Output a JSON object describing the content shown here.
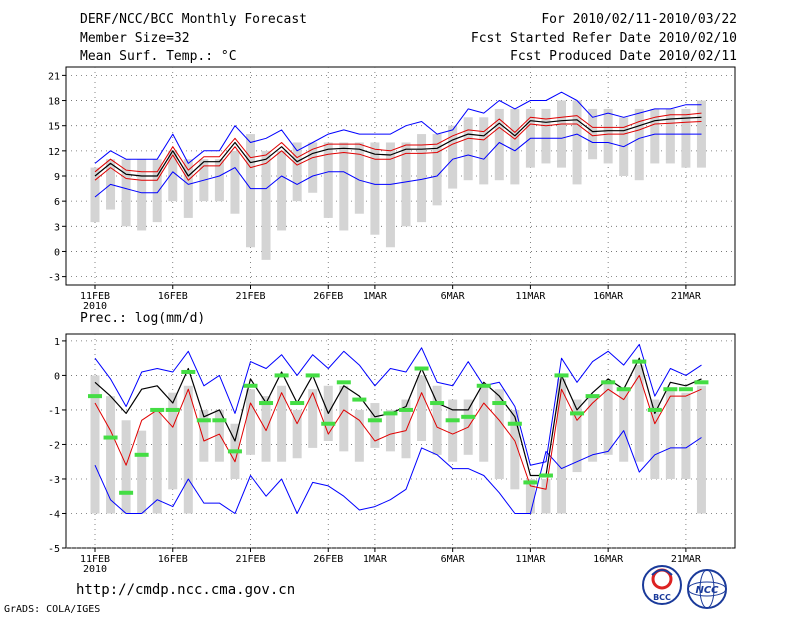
{
  "header": {
    "title": "DERF/NCC/BCC Monthly Forecast",
    "member_size": "Member Size=32",
    "variable": "Mean Surf. Temp.: °C",
    "period": "For 2010/02/11-2010/03/22",
    "started": "Fcst Started Refer Date 2010/02/10",
    "produced": "Fcst Produced Date 2010/02/11"
  },
  "footer": {
    "url": "http://cmdp.ncc.cma.gov.cn",
    "grads": "GrADS: COLA/IGES",
    "logo1_text": "BCC",
    "logo2_text": "NCC"
  },
  "colors": {
    "range": "#d4d4d4",
    "ens": "#0000ff",
    "spread": "#e00000",
    "mean": "#000000",
    "prec_marker": "#44dd44"
  },
  "x_ticks": [
    "11FEB",
    "16FEB",
    "21FEB",
    "26FEB",
    "1MAR",
    "6MAR",
    "11MAR",
    "16MAR",
    "21MAR"
  ],
  "x_tick_days": [
    0,
    5,
    10,
    15,
    18,
    23,
    28,
    33,
    38
  ],
  "year_label": "2010",
  "chart_data": [
    {
      "type": "line",
      "title": "Mean Surf. Temp.: °C",
      "ylabel": "°C",
      "ylim": [
        -4,
        22
      ],
      "yticks": [
        -3,
        0,
        3,
        6,
        9,
        12,
        15,
        18,
        21
      ],
      "x_start": "2010-02-11",
      "n_days": 40,
      "series": [
        {
          "name": "range_max",
          "values": [
            10,
            11,
            11,
            11,
            11,
            12,
            11,
            11,
            11,
            12,
            14,
            12,
            12,
            13,
            13,
            13,
            13,
            13,
            13,
            13,
            13,
            14,
            14,
            15,
            16,
            16,
            17,
            17,
            17,
            17,
            18,
            18,
            17,
            17,
            16,
            17,
            17,
            17,
            17,
            18
          ]
        },
        {
          "name": "range_min",
          "values": [
            3.5,
            5,
            3,
            2.5,
            3.5,
            6,
            4,
            6,
            6,
            4.5,
            0.5,
            -1,
            2.5,
            6,
            7,
            4,
            2.5,
            4.5,
            2,
            0.5,
            3,
            3.5,
            5.5,
            7.5,
            8.5,
            8,
            8.5,
            8,
            10,
            10.5,
            10,
            8,
            11,
            10.5,
            9,
            8.5,
            10.5,
            10.5,
            10,
            10
          ]
        },
        {
          "name": "ens_max",
          "values": [
            10.5,
            12,
            11,
            11,
            11,
            14,
            10.5,
            12,
            12,
            15,
            13,
            13.5,
            14.5,
            12,
            13,
            14,
            14.5,
            14,
            14,
            14,
            15,
            15.5,
            14,
            14.5,
            17,
            16.5,
            18,
            17,
            18,
            18,
            19,
            18,
            16,
            16.5,
            16,
            16.5,
            17,
            17,
            17.5,
            17.5
          ]
        },
        {
          "name": "spread_upper",
          "values": [
            9.5,
            11,
            9.7,
            9.5,
            9.5,
            12.5,
            9.7,
            11.3,
            11.3,
            13.5,
            11.2,
            11.5,
            13,
            11.2,
            12.2,
            12.8,
            12.8,
            12.8,
            12.2,
            12,
            12.7,
            12.7,
            12.8,
            13.8,
            14.5,
            14.3,
            15.8,
            14.2,
            16,
            15.8,
            16,
            16.2,
            14.8,
            14.8,
            14.8,
            15.5,
            16,
            16.3,
            16.3,
            16.5
          ]
        },
        {
          "name": "mean",
          "values": [
            9,
            10.5,
            9.2,
            9,
            9,
            12,
            9,
            10.7,
            10.7,
            13,
            10.6,
            11,
            12.5,
            10.7,
            11.7,
            12.2,
            12.3,
            12.2,
            11.6,
            11.5,
            12.2,
            12.2,
            12.3,
            13.3,
            14,
            13.8,
            15.3,
            13.8,
            15.6,
            15.4,
            15.6,
            15.7,
            14.3,
            14.4,
            14.4,
            15,
            15.6,
            15.8,
            15.9,
            16
          ]
        },
        {
          "name": "spread_lower",
          "values": [
            8.5,
            10,
            8.7,
            8.5,
            8.5,
            11.5,
            8.5,
            10.2,
            10.2,
            12.5,
            10,
            10.5,
            12,
            10.3,
            11.2,
            11.6,
            11.8,
            11.6,
            11,
            11,
            11.7,
            11.7,
            11.8,
            12.8,
            13.5,
            13.3,
            14.8,
            13.4,
            15.2,
            15,
            15.2,
            15.2,
            13.8,
            14,
            14,
            14.5,
            15.2,
            15.3,
            15.4,
            15.5
          ]
        },
        {
          "name": "ens_min",
          "values": [
            6.5,
            8,
            7.5,
            7,
            7,
            9.5,
            8,
            8.5,
            9,
            10,
            7.5,
            7.5,
            9,
            8,
            9,
            9.5,
            9.5,
            8.5,
            8,
            8,
            8.3,
            8.6,
            9,
            11,
            11.5,
            11,
            13,
            12,
            13.5,
            13.5,
            13.5,
            14,
            13,
            13,
            12.5,
            13.5,
            14,
            14,
            14,
            14
          ]
        }
      ]
    },
    {
      "type": "line",
      "title": "Prec.: log(mm/d)",
      "ylabel": "log(mm/d)",
      "ylim": [
        -5,
        1.2
      ],
      "yticks": [
        -5,
        -4,
        -3,
        -2,
        -1,
        0,
        1
      ],
      "x_start": "2010-02-11",
      "n_days": 40,
      "series": [
        {
          "name": "range_max",
          "values": [
            0,
            -0.6,
            -1.3,
            -1.6,
            -1,
            -0.5,
            -0.3,
            -1,
            -1,
            -1.4,
            -0.4,
            -0.6,
            -0.3,
            -1,
            -0.4,
            -0.3,
            -0.3,
            -1,
            -0.8,
            -1,
            -0.7,
            0,
            -0.3,
            -0.7,
            -0.7,
            -0.3,
            -0.4,
            -1,
            -3,
            -3,
            -0.1,
            -0.7,
            -0.6,
            -0.2,
            -0.4,
            0.3,
            -0.7,
            -0.4,
            -0.5,
            -0.3
          ]
        },
        {
          "name": "range_min",
          "values": [
            -4,
            -4,
            -4,
            -4,
            -4,
            -3.3,
            -4,
            -2.5,
            -2.5,
            -3,
            -2.3,
            -2.5,
            -2.5,
            -2.4,
            -2.1,
            -1.9,
            -2.2,
            -2.5,
            -2.1,
            -2.2,
            -2.4,
            -1.9,
            -2.3,
            -2.5,
            -2.3,
            -2.5,
            -3,
            -3.3,
            -4,
            -4,
            -4,
            -2.8,
            -2.5,
            -2.3,
            -2.5,
            -2.5,
            -3,
            -3,
            -3,
            -4
          ]
        },
        {
          "name": "ens_max",
          "values": [
            0.5,
            -0.1,
            -0.9,
            0.1,
            0.2,
            0.1,
            0.7,
            -0.3,
            0,
            -1.1,
            0.4,
            0.2,
            0.6,
            0,
            0.6,
            0.2,
            0.7,
            0.3,
            -0.3,
            0.2,
            0.1,
            0.8,
            -0.2,
            -0.3,
            0.4,
            -0.3,
            -0.2,
            -0.9,
            -2.6,
            -2.5,
            0.5,
            -0.2,
            0.4,
            0.7,
            0.3,
            0.9,
            -0.6,
            0.2,
            0,
            0.3
          ]
        },
        {
          "name": "mean",
          "values": [
            -0.2,
            -0.6,
            -1.1,
            -0.4,
            -0.3,
            -0.8,
            0.2,
            -1.2,
            -1,
            -1.9,
            -0.1,
            -0.8,
            0.1,
            -0.8,
            0,
            -1.1,
            -0.3,
            -0.6,
            -1.2,
            -1.1,
            -0.9,
            0.2,
            -0.8,
            -1,
            -1,
            -0.2,
            -0.6,
            -1.2,
            -2.9,
            -2.9,
            0,
            -1,
            -0.5,
            -0.1,
            -0.4,
            0.5,
            -1.1,
            -0.2,
            -0.3,
            -0.1
          ]
        },
        {
          "name": "spread_lower",
          "values": [
            -0.8,
            -1.6,
            -2.6,
            -1.3,
            -1,
            -1.5,
            -0.4,
            -1.9,
            -1.7,
            -2.5,
            -0.8,
            -1.6,
            -0.5,
            -1.4,
            -0.5,
            -1.7,
            -1,
            -1.3,
            -1.9,
            -1.7,
            -1.6,
            -0.5,
            -1.5,
            -1.7,
            -1.5,
            -0.8,
            -1.3,
            -1.9,
            -3.2,
            -3.3,
            -0.4,
            -1.3,
            -0.8,
            -0.4,
            -0.7,
            0,
            -1.4,
            -0.6,
            -0.6,
            -0.4
          ]
        },
        {
          "name": "ens_min",
          "values": [
            -2.6,
            -3.6,
            -4,
            -4,
            -3.6,
            -3.8,
            -3,
            -3.7,
            -3.7,
            -4,
            -2.9,
            -3.5,
            -3,
            -4,
            -3.1,
            -3.2,
            -3.5,
            -3.9,
            -3.8,
            -3.6,
            -3.3,
            -2.1,
            -2.3,
            -2.7,
            -2.7,
            -2.9,
            -3.4,
            -4,
            -4,
            -2.2,
            -2.7,
            -2.5,
            -2.3,
            -2.2,
            -1.6,
            -2.8,
            -2.3,
            -2.1,
            -2.1,
            -1.8
          ]
        },
        {
          "name": "markers",
          "values": [
            -0.6,
            -1.8,
            -3.4,
            -2.3,
            -1,
            -1,
            0.1,
            -1.3,
            -1.3,
            -2.2,
            -0.3,
            -0.8,
            0,
            -0.8,
            0,
            -1.4,
            -0.2,
            -0.7,
            -1.3,
            -1.1,
            -1,
            0.2,
            -0.8,
            -1.3,
            -1.2,
            -0.3,
            -0.8,
            -1.4,
            -3.1,
            -2.9,
            0,
            -1.1,
            -0.6,
            -0.2,
            -0.4,
            0.4,
            -1,
            -0.4,
            -0.4,
            -0.2
          ]
        }
      ]
    }
  ]
}
